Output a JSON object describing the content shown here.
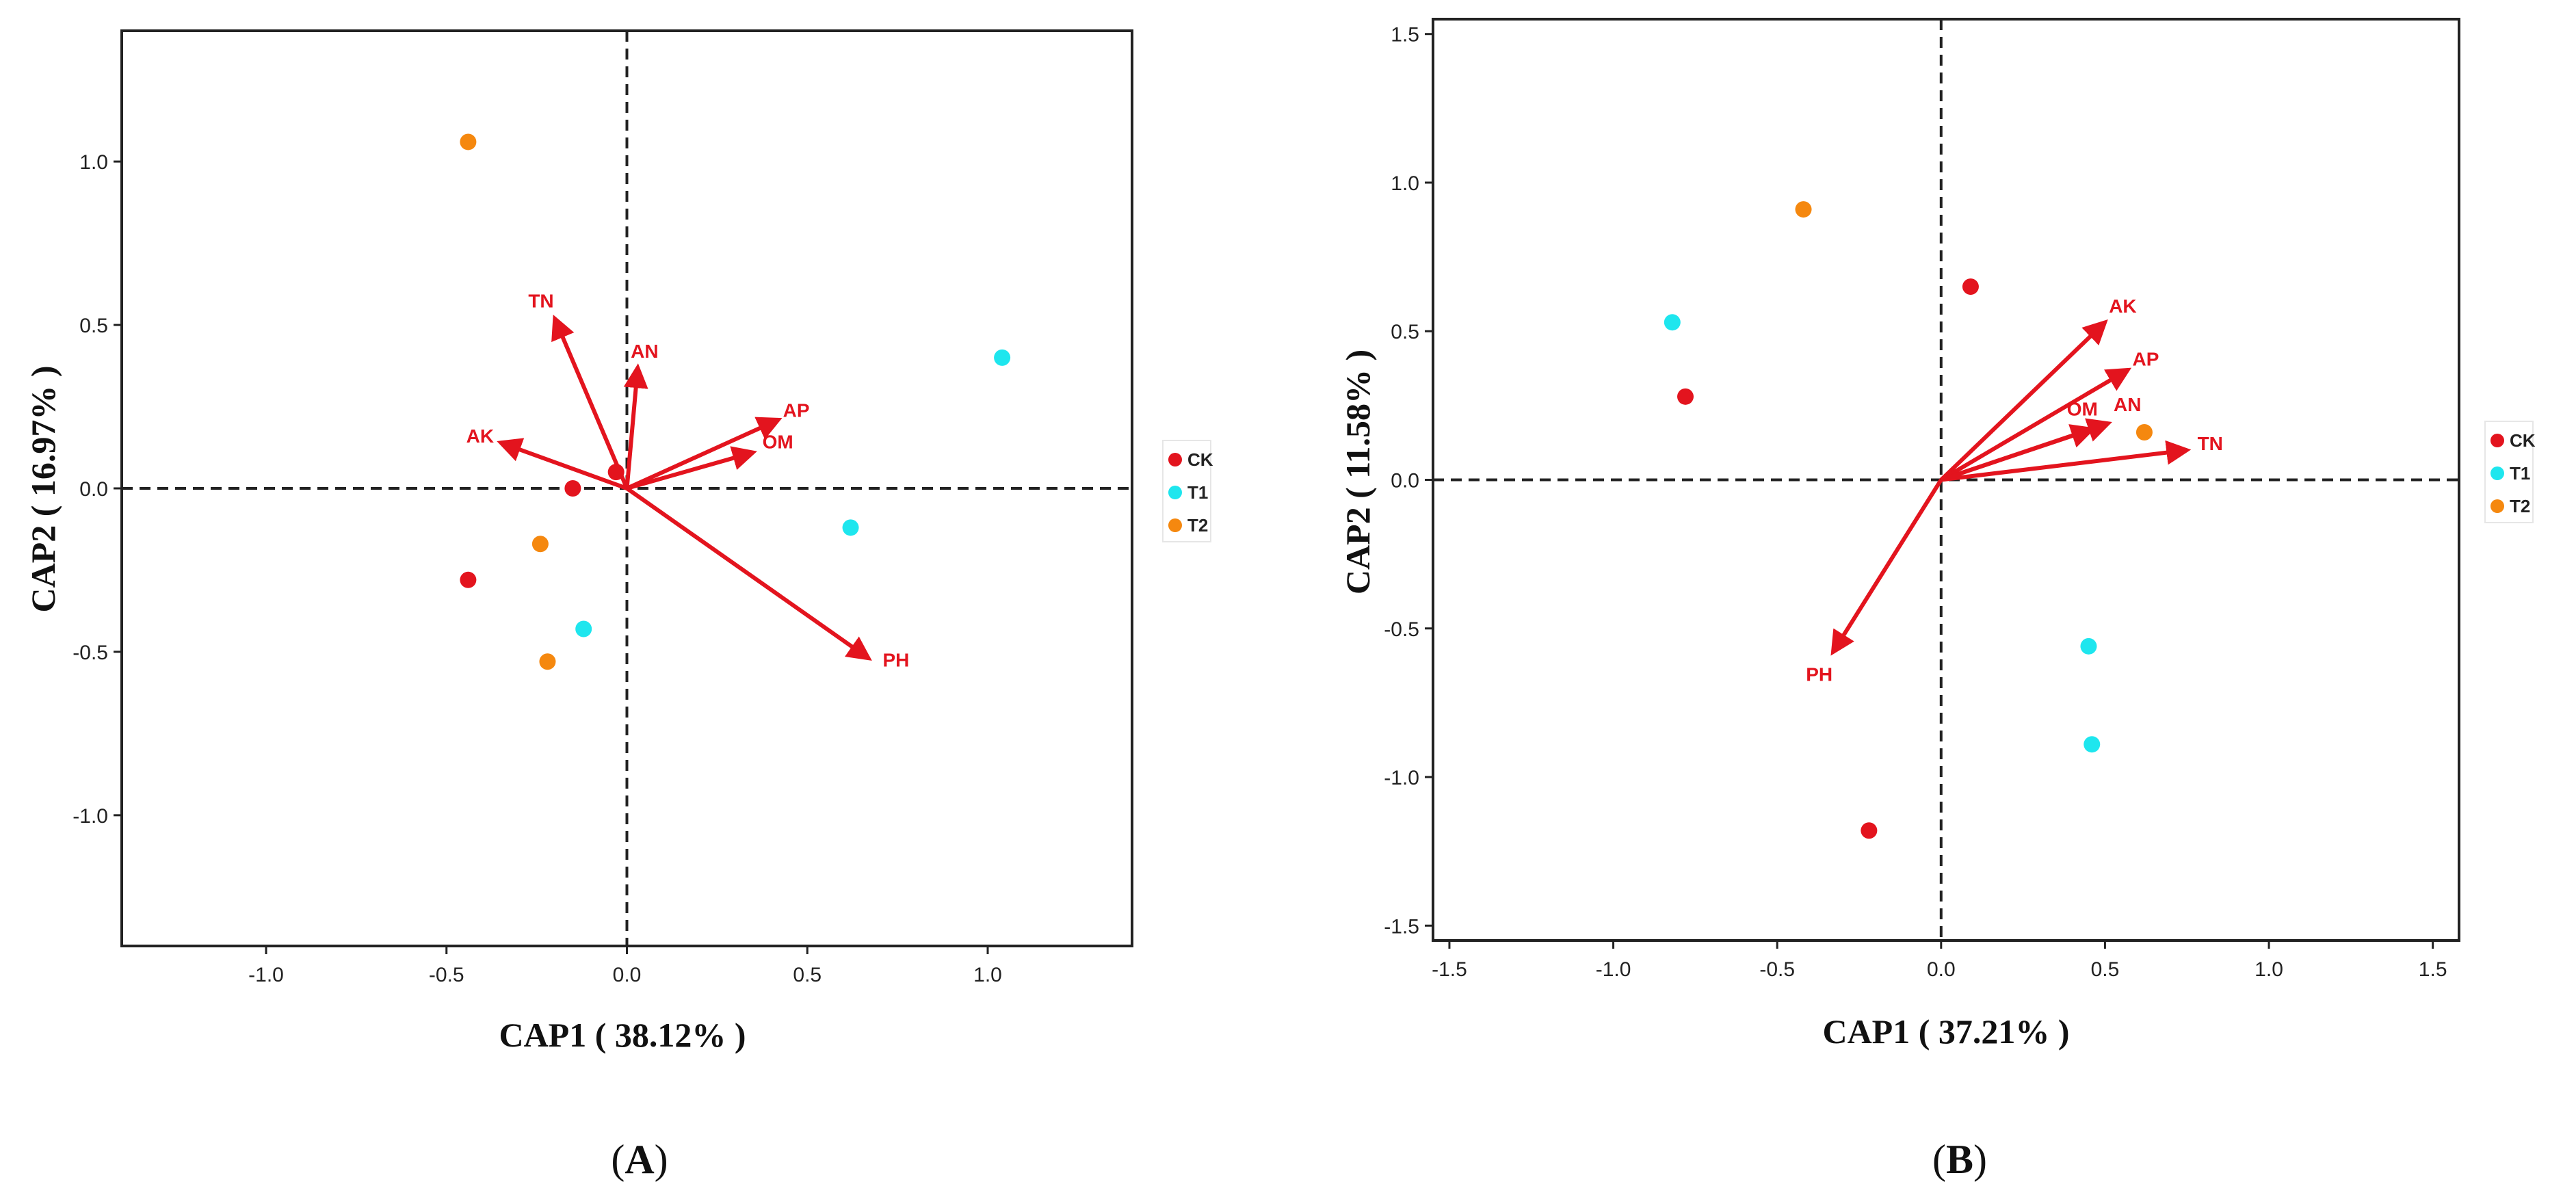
{
  "chart_data": [
    {
      "type": "scatter",
      "panel_label": "A",
      "xlabel": "CAP1 ( 38.12% )",
      "ylabel": "CAP2 ( 16.97% )",
      "xlim": [
        -1.4,
        1.4
      ],
      "ylim": [
        -1.4,
        1.4
      ],
      "xticks": [
        -1.0,
        -0.5,
        0.0,
        0.5,
        1.0
      ],
      "yticks": [
        -1.0,
        -0.5,
        0.0,
        0.5,
        1.0
      ],
      "zero_lines": true,
      "legend": {
        "position": "right",
        "entries": [
          {
            "name": "CK",
            "color": "#e3141e"
          },
          {
            "name": "T1",
            "color": "#1ee6ee"
          },
          {
            "name": "T2",
            "color": "#f5880f"
          }
        ]
      },
      "series": [
        {
          "name": "CK",
          "color": "#e3141e",
          "points": [
            [
              -0.44,
              -0.28
            ],
            [
              -0.15,
              0.0
            ],
            [
              -0.03,
              0.05
            ]
          ]
        },
        {
          "name": "T1",
          "color": "#1ee6ee",
          "points": [
            [
              1.04,
              0.4
            ],
            [
              0.62,
              -0.12
            ],
            [
              -0.12,
              -0.43
            ]
          ]
        },
        {
          "name": "T2",
          "color": "#f5880f",
          "points": [
            [
              -0.44,
              1.06
            ],
            [
              -0.24,
              -0.17
            ],
            [
              -0.22,
              -0.53
            ]
          ]
        }
      ],
      "vectors": [
        {
          "name": "TN",
          "x": -0.2,
          "y": 0.52
        },
        {
          "name": "AN",
          "x": 0.03,
          "y": 0.37
        },
        {
          "name": "AK",
          "x": -0.35,
          "y": 0.14
        },
        {
          "name": "AP",
          "x": 0.42,
          "y": 0.21
        },
        {
          "name": "OM",
          "x": 0.35,
          "y": 0.11
        },
        {
          "name": "PH",
          "x": 0.67,
          "y": -0.52
        }
      ],
      "vector_color": "#e3141e"
    },
    {
      "type": "scatter",
      "panel_label": "B",
      "xlabel": "CAP1 ( 37.21% )",
      "ylabel": "CAP2 ( 11.58% )",
      "xlim": [
        -1.55,
        1.58
      ],
      "ylim": [
        -1.55,
        1.55
      ],
      "xticks": [
        -1.5,
        -1.0,
        -0.5,
        0.0,
        0.5,
        1.0,
        1.5
      ],
      "yticks": [
        -1.5,
        -1.0,
        -0.5,
        0.0,
        0.5,
        1.0,
        1.5
      ],
      "zero_lines": true,
      "legend": {
        "position": "right",
        "entries": [
          {
            "name": "CK",
            "color": "#e3141e"
          },
          {
            "name": "T1",
            "color": "#1ee6ee"
          },
          {
            "name": "T2",
            "color": "#f5880f"
          }
        ]
      },
      "series": [
        {
          "name": "CK",
          "color": "#e3141e",
          "points": [
            [
              0.09,
              0.65
            ],
            [
              -0.78,
              0.28
            ],
            [
              -0.22,
              -1.18
            ]
          ]
        },
        {
          "name": "T1",
          "color": "#1ee6ee",
          "points": [
            [
              -0.82,
              0.53
            ],
            [
              0.45,
              -0.56
            ],
            [
              0.46,
              -0.89
            ]
          ]
        },
        {
          "name": "T2",
          "color": "#f5880f",
          "points": [
            [
              -0.42,
              0.91
            ],
            [
              0.62,
              0.16
            ]
          ]
        }
      ],
      "vectors": [
        {
          "name": "AK",
          "x": 0.5,
          "y": 0.53
        },
        {
          "name": "AP",
          "x": 0.57,
          "y": 0.37
        },
        {
          "name": "OM",
          "x": 0.46,
          "y": 0.17
        },
        {
          "name": "AN",
          "x": 0.51,
          "y": 0.19
        },
        {
          "name": "TN",
          "x": 0.75,
          "y": 0.1
        },
        {
          "name": "PH",
          "x": -0.33,
          "y": -0.58
        }
      ],
      "vector_color": "#e3141e"
    }
  ]
}
